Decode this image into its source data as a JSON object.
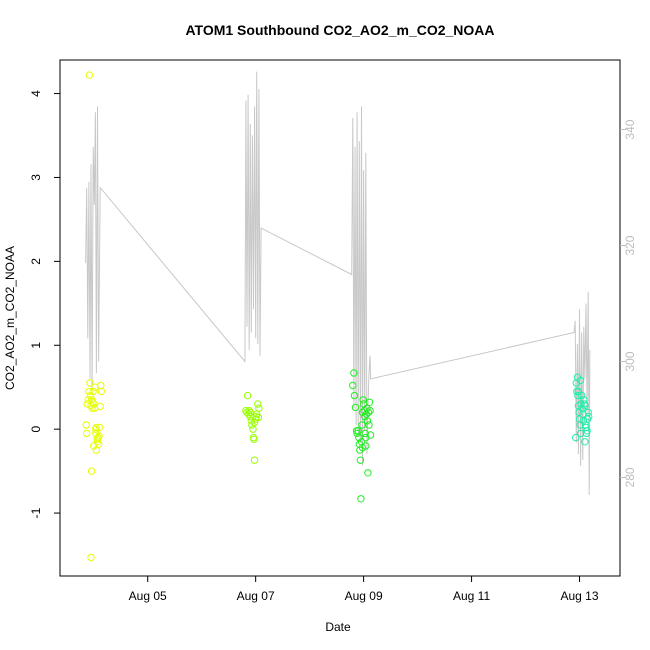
{
  "chart_data": {
    "type": "scatter",
    "title": "ATOM1 Southbound CO2_AO2_m_CO2_NOAA",
    "xlabel": "Date",
    "ylabel": "CO2_AO2_m_CO2_NOAA",
    "x_axis": {
      "type": "date",
      "range": [
        "2016-08-03T09:00",
        "2016-08-13T18:00"
      ],
      "ticks": [
        "Aug 05",
        "Aug 07",
        "Aug 09",
        "Aug 11",
        "Aug 13"
      ],
      "tick_days": [
        5,
        7,
        9,
        11,
        13
      ]
    },
    "y_axis_left": {
      "range": [
        -1.75,
        4.4
      ],
      "ticks": [
        -1,
        0,
        1,
        2,
        3,
        4
      ]
    },
    "y_axis_right": {
      "range": [
        263,
        352
      ],
      "ticks": [
        280,
        300,
        320,
        340
      ],
      "color": "#bdbdbd"
    },
    "grid": false,
    "legend": "none",
    "series": [
      {
        "kind": "points",
        "axis": "left",
        "color": "#e6ff00",
        "points": [
          [
            3.92,
            4.22
          ],
          [
            3.86,
            0.05
          ],
          [
            3.88,
            0.3
          ],
          [
            3.9,
            0.35
          ],
          [
            3.91,
            0.45
          ],
          [
            3.93,
            0.55
          ],
          [
            3.94,
            0.4
          ],
          [
            3.95,
            0.28
          ],
          [
            3.96,
            0.35
          ],
          [
            3.97,
            0.25
          ],
          [
            3.98,
            0.32
          ],
          [
            3.99,
            0.45
          ],
          [
            4.0,
            0.3
          ],
          [
            4.01,
            0.25
          ],
          [
            4.02,
            0.5
          ],
          [
            4.03,
            0.0
          ],
          [
            4.04,
            -0.05
          ],
          [
            4.05,
            0.02
          ],
          [
            4.06,
            -0.12
          ],
          [
            4.07,
            -0.15
          ],
          [
            4.08,
            -0.1
          ],
          [
            4.09,
            -0.18
          ],
          [
            4.1,
            -0.08
          ],
          [
            4.11,
            0.02
          ],
          [
            4.12,
            0.27
          ],
          [
            4.13,
            0.52
          ],
          [
            4.14,
            0.45
          ],
          [
            3.87,
            -0.05
          ],
          [
            3.96,
            -0.5
          ],
          [
            3.95,
            -1.53
          ],
          [
            4.0,
            -0.2
          ],
          [
            4.05,
            -0.25
          ]
        ]
      },
      {
        "kind": "points",
        "axis": "left",
        "color": "#99ff00",
        "points": [
          [
            6.85,
            0.4
          ],
          [
            6.82,
            0.22
          ],
          [
            6.84,
            0.2
          ],
          [
            6.87,
            0.18
          ],
          [
            6.9,
            0.15
          ],
          [
            6.92,
            0.1
          ],
          [
            6.93,
            0.05
          ],
          [
            6.95,
            0.0
          ],
          [
            6.96,
            -0.1
          ],
          [
            6.97,
            -0.12
          ],
          [
            6.98,
            0.08
          ],
          [
            7.0,
            0.12
          ],
          [
            7.02,
            0.18
          ],
          [
            7.04,
            0.3
          ],
          [
            7.06,
            0.25
          ],
          [
            6.98,
            -0.37
          ],
          [
            6.88,
            0.22
          ],
          [
            6.9,
            0.2
          ],
          [
            7.01,
            0.15
          ],
          [
            7.05,
            0.14
          ]
        ]
      },
      {
        "kind": "points",
        "axis": "left",
        "color": "#22ee22",
        "points": [
          [
            8.82,
            0.67
          ],
          [
            8.8,
            0.52
          ],
          [
            8.83,
            0.4
          ],
          [
            8.85,
            0.26
          ],
          [
            8.87,
            -0.02
          ],
          [
            8.88,
            -0.05
          ],
          [
            8.9,
            -0.02
          ],
          [
            8.91,
            -0.1
          ],
          [
            8.92,
            -0.18
          ],
          [
            8.93,
            -0.25
          ],
          [
            8.94,
            -0.37
          ],
          [
            8.95,
            -0.83
          ],
          [
            8.96,
            -0.15
          ],
          [
            8.97,
            0.05
          ],
          [
            8.98,
            0.2
          ],
          [
            8.99,
            0.35
          ],
          [
            9.0,
            0.3
          ],
          [
            9.01,
            0.22
          ],
          [
            9.02,
            0.15
          ],
          [
            9.03,
            -0.05
          ],
          [
            9.04,
            -0.1
          ],
          [
            9.05,
            0.18
          ],
          [
            9.06,
            0.25
          ],
          [
            9.07,
            0.1
          ],
          [
            9.08,
            -0.52
          ],
          [
            9.09,
            0.2
          ],
          [
            9.1,
            0.05
          ],
          [
            9.11,
            0.32
          ],
          [
            9.12,
            0.22
          ],
          [
            9.13,
            -0.07
          ],
          [
            9.04,
            -0.2
          ],
          [
            8.98,
            -0.22
          ]
        ]
      },
      {
        "kind": "points",
        "axis": "left",
        "color": "#22eeaa",
        "points": [
          [
            12.96,
            0.62
          ],
          [
            12.94,
            0.55
          ],
          [
            12.95,
            0.45
          ],
          [
            12.97,
            0.4
          ],
          [
            12.98,
            0.28
          ],
          [
            12.99,
            0.2
          ],
          [
            13.0,
            0.12
          ],
          [
            13.01,
            0.05
          ],
          [
            13.02,
            -0.05
          ],
          [
            13.03,
            0.3
          ],
          [
            13.04,
            0.4
          ],
          [
            13.05,
            0.25
          ],
          [
            13.06,
            0.18
          ],
          [
            13.07,
            0.1
          ],
          [
            13.08,
            0.35
          ],
          [
            13.09,
            0.3
          ],
          [
            13.1,
            0.28
          ],
          [
            13.11,
            0.05
          ],
          [
            13.12,
            0.02
          ],
          [
            13.13,
            -0.05
          ],
          [
            13.14,
            -0.02
          ],
          [
            13.15,
            0.12
          ],
          [
            13.16,
            0.2
          ],
          [
            13.17,
            0.15
          ],
          [
            12.93,
            -0.1
          ],
          [
            13.1,
            -0.15
          ],
          [
            13.02,
            0.58
          ],
          [
            12.98,
            0.45
          ]
        ]
      },
      {
        "kind": "line",
        "axis": "right",
        "color": "#c8c8c8",
        "points": [
          [
            3.85,
            317
          ],
          [
            3.87,
            330
          ],
          [
            3.89,
            304
          ],
          [
            3.91,
            331
          ],
          [
            3.93,
            297
          ],
          [
            3.95,
            334
          ],
          [
            3.97,
            295
          ],
          [
            3.99,
            337
          ],
          [
            4.01,
            327
          ],
          [
            4.03,
            343
          ],
          [
            4.05,
            298
          ],
          [
            4.07,
            344
          ],
          [
            4.09,
            300
          ],
          [
            4.12,
            330
          ],
          [
            6.8,
            300
          ],
          [
            6.82,
            345
          ],
          [
            6.84,
            306
          ],
          [
            6.86,
            346
          ],
          [
            6.88,
            302
          ],
          [
            6.9,
            341
          ],
          [
            6.92,
            305
          ],
          [
            6.94,
            339
          ],
          [
            6.96,
            309
          ],
          [
            6.98,
            344
          ],
          [
            7.0,
            304
          ],
          [
            7.02,
            350
          ],
          [
            7.04,
            303
          ],
          [
            7.06,
            347
          ],
          [
            7.08,
            301
          ],
          [
            7.1,
            323
          ],
          [
            8.78,
            315
          ],
          [
            8.8,
            342
          ],
          [
            8.82,
            292
          ],
          [
            8.84,
            337
          ],
          [
            8.86,
            289
          ],
          [
            8.88,
            343
          ],
          [
            8.9,
            287
          ],
          [
            8.92,
            338
          ],
          [
            8.94,
            286
          ],
          [
            8.96,
            344
          ],
          [
            8.98,
            282
          ],
          [
            9.0,
            333
          ],
          [
            9.02,
            288
          ],
          [
            9.04,
            336
          ],
          [
            9.06,
            284
          ],
          [
            9.08,
            292
          ],
          [
            9.1,
            298
          ],
          [
            9.12,
            301
          ],
          [
            9.13,
            297
          ],
          [
            12.9,
            305
          ],
          [
            12.92,
            307
          ],
          [
            12.94,
            286
          ],
          [
            12.96,
            303
          ],
          [
            12.98,
            284
          ],
          [
            13.0,
            309
          ],
          [
            13.02,
            282
          ],
          [
            13.04,
            305
          ],
          [
            13.06,
            283
          ],
          [
            13.08,
            306
          ],
          [
            13.1,
            297
          ],
          [
            13.12,
            310
          ],
          [
            13.14,
            291
          ],
          [
            13.16,
            312
          ],
          [
            13.18,
            277
          ],
          [
            13.19,
            302
          ]
        ]
      }
    ]
  }
}
